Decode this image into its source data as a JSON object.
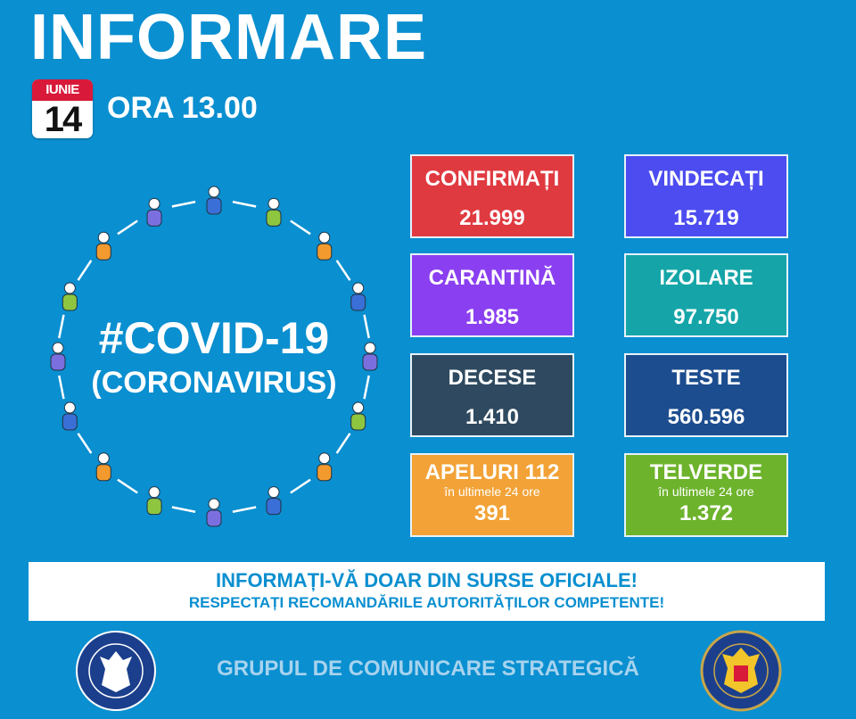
{
  "header": {
    "title": "INFORMARE",
    "calendar_month": "IUNIE",
    "calendar_day": "14",
    "time": "ORA 13.00"
  },
  "illustration": {
    "line1": "#COVID-19",
    "line2": "(CORONAVIRUS)",
    "people_colors": [
      "#3a6fd8",
      "#8ec63f",
      "#f39a2e",
      "#3a6fd8",
      "#7b6fe0",
      "#8ec63f",
      "#f39a2e",
      "#3a6fd8",
      "#7b6fe0",
      "#8ec63f",
      "#f39a2e",
      "#3a6fd8",
      "#7b6fe0",
      "#8ec63f",
      "#f39a2e",
      "#7b6fe0"
    ]
  },
  "stats": [
    {
      "label": "CONFIRMAȚI",
      "value": "21.999",
      "color": "#e03a41"
    },
    {
      "label": "VINDECAȚI",
      "value": "15.719",
      "color": "#4c4cf0"
    },
    {
      "label": "CARANTINĂ",
      "value": "1.985",
      "color": "#8a3ff0"
    },
    {
      "label": "IZOLARE",
      "value": "97.750",
      "color": "#15a5a8"
    },
    {
      "label": "DECESE",
      "value": "1.410",
      "color": "#2f4a60"
    },
    {
      "label": "TESTE",
      "value": "560.596",
      "color": "#1c4d8f"
    },
    {
      "label": "APELURI 112",
      "sub": "în ultimele 24 ore",
      "value": "391",
      "color": "#f2a236"
    },
    {
      "label": "TELVERDE",
      "sub": "în ultimele 24 ore",
      "value": "1.372",
      "color": "#6db32c"
    }
  ],
  "banner": {
    "line1": "INFORMAȚI-VĂ DOAR DIN SURSE OFICIALE!",
    "line2": "RESPECTAȚI RECOMANDĂRILE AUTORITĂȚILOR COMPETENTE!"
  },
  "footer": {
    "text": "GRUPUL DE COMUNICARE STRATEGICĂ",
    "logo_left": "GUVERNUL ROMÂNIEI",
    "logo_right": "DEPARTAMENTUL PENTRU SITUAȚII DE URGENȚĂ M.A.I."
  }
}
